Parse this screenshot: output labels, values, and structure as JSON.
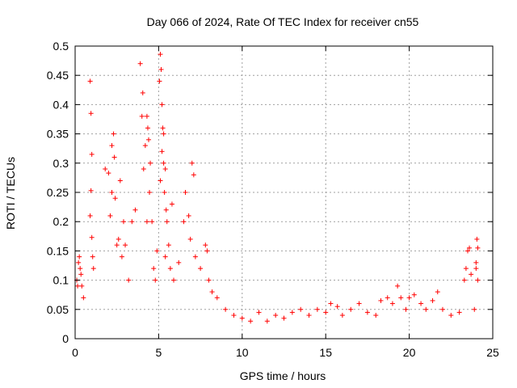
{
  "chart_data": {
    "type": "scatter",
    "title": "Day 066 of 2024, Rate Of TEC Index for receiver cn55",
    "xlabel": "GPS time / hours",
    "ylabel": "ROTI / TECUs",
    "xlim": [
      0,
      25
    ],
    "ylim": [
      0,
      0.5
    ],
    "xticks": [
      "0",
      "5",
      "10",
      "15",
      "20",
      "25"
    ],
    "yticks": [
      "0",
      "0.05",
      "0.1",
      "0.15",
      "0.2",
      "0.25",
      "0.3",
      "0.35",
      "0.4",
      "0.45",
      "0.5"
    ],
    "grid": true,
    "marker": "+",
    "color": "#ff0000",
    "series": [
      {
        "name": "ROTI",
        "description": "Dense point cloud; representative sample of visible points",
        "points": [
          [
            0.1,
            0.1
          ],
          [
            0.15,
            0.09
          ],
          [
            0.2,
            0.13
          ],
          [
            0.25,
            0.14
          ],
          [
            0.3,
            0.12
          ],
          [
            0.35,
            0.11
          ],
          [
            0.4,
            0.09
          ],
          [
            0.5,
            0.07
          ],
          [
            0.9,
            0.44
          ],
          [
            0.95,
            0.385
          ],
          [
            1.0,
            0.315
          ],
          [
            0.95,
            0.253
          ],
          [
            0.9,
            0.21
          ],
          [
            1.0,
            0.173
          ],
          [
            1.05,
            0.14
          ],
          [
            1.1,
            0.12
          ],
          [
            1.8,
            0.29
          ],
          [
            2.0,
            0.283
          ],
          [
            2.2,
            0.33
          ],
          [
            2.3,
            0.35
          ],
          [
            2.35,
            0.31
          ],
          [
            2.2,
            0.25
          ],
          [
            2.4,
            0.24
          ],
          [
            2.1,
            0.21
          ],
          [
            2.5,
            0.16
          ],
          [
            2.6,
            0.17
          ],
          [
            2.8,
            0.14
          ],
          [
            2.7,
            0.27
          ],
          [
            2.9,
            0.2
          ],
          [
            3.0,
            0.16
          ],
          [
            3.2,
            0.1
          ],
          [
            3.4,
            0.2
          ],
          [
            3.6,
            0.22
          ],
          [
            3.9,
            0.47
          ],
          [
            4.0,
            0.38
          ],
          [
            4.05,
            0.42
          ],
          [
            4.1,
            0.29
          ],
          [
            4.2,
            0.33
          ],
          [
            4.3,
            0.38
          ],
          [
            4.35,
            0.36
          ],
          [
            4.4,
            0.34
          ],
          [
            4.5,
            0.3
          ],
          [
            4.45,
            0.25
          ],
          [
            4.3,
            0.2
          ],
          [
            4.6,
            0.2
          ],
          [
            4.7,
            0.12
          ],
          [
            4.8,
            0.1
          ],
          [
            4.9,
            0.15
          ],
          [
            5.1,
            0.486
          ],
          [
            5.15,
            0.46
          ],
          [
            5.05,
            0.44
          ],
          [
            5.2,
            0.4
          ],
          [
            5.25,
            0.36
          ],
          [
            5.3,
            0.35
          ],
          [
            5.2,
            0.32
          ],
          [
            5.3,
            0.3
          ],
          [
            5.4,
            0.29
          ],
          [
            5.1,
            0.27
          ],
          [
            5.35,
            0.25
          ],
          [
            5.45,
            0.22
          ],
          [
            5.5,
            0.2
          ],
          [
            5.6,
            0.16
          ],
          [
            5.4,
            0.14
          ],
          [
            5.7,
            0.12
          ],
          [
            5.8,
            0.23
          ],
          [
            5.9,
            0.1
          ],
          [
            6.2,
            0.13
          ],
          [
            6.5,
            0.2
          ],
          [
            6.6,
            0.25
          ],
          [
            6.8,
            0.21
          ],
          [
            6.9,
            0.17
          ],
          [
            7.0,
            0.3
          ],
          [
            7.1,
            0.28
          ],
          [
            7.2,
            0.14
          ],
          [
            7.5,
            0.12
          ],
          [
            7.8,
            0.16
          ],
          [
            7.9,
            0.15
          ],
          [
            8.0,
            0.1
          ],
          [
            8.2,
            0.08
          ],
          [
            8.5,
            0.07
          ],
          [
            9.0,
            0.05
          ],
          [
            9.5,
            0.04
          ],
          [
            10.0,
            0.035
          ],
          [
            10.5,
            0.03
          ],
          [
            11.0,
            0.045
          ],
          [
            11.5,
            0.03
          ],
          [
            12.0,
            0.04
          ],
          [
            12.5,
            0.035
          ],
          [
            13.0,
            0.045
          ],
          [
            13.5,
            0.05
          ],
          [
            14.0,
            0.04
          ],
          [
            14.5,
            0.05
          ],
          [
            15.0,
            0.045
          ],
          [
            15.3,
            0.06
          ],
          [
            15.7,
            0.055
          ],
          [
            16.0,
            0.04
          ],
          [
            16.5,
            0.05
          ],
          [
            17.0,
            0.06
          ],
          [
            17.5,
            0.045
          ],
          [
            18.0,
            0.04
          ],
          [
            18.3,
            0.065
          ],
          [
            18.7,
            0.07
          ],
          [
            19.0,
            0.06
          ],
          [
            19.3,
            0.09
          ],
          [
            19.5,
            0.07
          ],
          [
            19.8,
            0.05
          ],
          [
            20.0,
            0.07
          ],
          [
            20.3,
            0.075
          ],
          [
            20.7,
            0.06
          ],
          [
            21.0,
            0.05
          ],
          [
            21.4,
            0.065
          ],
          [
            21.7,
            0.08
          ],
          [
            22.0,
            0.05
          ],
          [
            22.5,
            0.04
          ],
          [
            23.0,
            0.045
          ],
          [
            23.3,
            0.1
          ],
          [
            23.4,
            0.12
          ],
          [
            23.5,
            0.15
          ],
          [
            23.6,
            0.155
          ],
          [
            23.7,
            0.11
          ],
          [
            23.9,
            0.05
          ],
          [
            24.0,
            0.13
          ],
          [
            24.05,
            0.17
          ],
          [
            24.1,
            0.155
          ],
          [
            24.0,
            0.12
          ],
          [
            24.1,
            0.1
          ]
        ]
      }
    ]
  }
}
